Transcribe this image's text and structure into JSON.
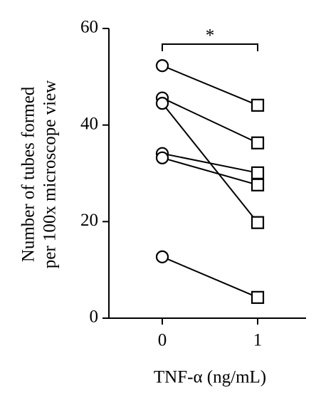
{
  "chart_data": {
    "type": "line",
    "ylabel": [
      "Number of tubes formed",
      "per 100x microscope view"
    ],
    "xlabel": "TNF-α (ng/mL)",
    "categories": [
      "0",
      "1"
    ],
    "markers": [
      "circle",
      "square"
    ],
    "color": "#000000",
    "annotation": "*",
    "series": [
      {
        "values": [
          52.3,
          44.1
        ]
      },
      {
        "values": [
          45.6,
          36.3
        ]
      },
      {
        "values": [
          44.5,
          19.8
        ]
      },
      {
        "values": [
          34.1,
          30.1
        ]
      },
      {
        "values": [
          33.2,
          27.6
        ]
      },
      {
        "values": [
          12.7,
          4.3
        ]
      }
    ],
    "ylim": [
      0,
      60
    ],
    "yticks": [
      0,
      20,
      40,
      60
    ]
  }
}
